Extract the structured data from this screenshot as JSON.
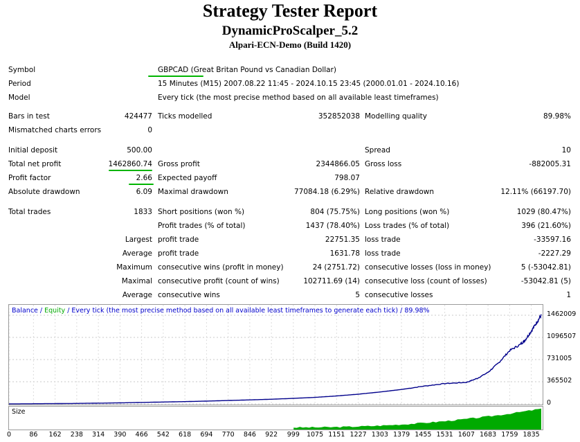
{
  "report": {
    "title": "Strategy Tester Report",
    "expert": "DynamicProScalper_5.2",
    "server": "Alpari-ECN-Demo (Build 1420)"
  },
  "info": {
    "symbol_label": "Symbol",
    "symbol_value": "GBPCAD (Great Britan Pound vs Canadian Dollar)",
    "period_label": "Period",
    "period_value": "15 Minutes (M15) 2007.08.22 11:45 - 2024.10.15 23:45 (2000.01.01 - 2024.10.16)",
    "model_label": "Model",
    "model_value": "Every tick (the most precise method based on all available least timeframes)"
  },
  "stats": {
    "bars_label": "Bars in test",
    "bars_value": "424477",
    "ticks_label": "Ticks modelled",
    "ticks_value": "352852038",
    "quality_label": "Modelling quality",
    "quality_value": "89.98%",
    "mismatch_label": "Mismatched charts errors",
    "mismatch_value": "0",
    "deposit_label": "Initial deposit",
    "deposit_value": "500.00",
    "spread_label": "Spread",
    "spread_value": "10",
    "netprofit_label": "Total net profit",
    "netprofit_value": "1462860.74",
    "grossprofit_label": "Gross profit",
    "grossprofit_value": "2344866.05",
    "grossloss_label": "Gross loss",
    "grossloss_value": "-882005.31",
    "pf_label": "Profit factor",
    "pf_value": "2.66",
    "payoff_label": "Expected payoff",
    "payoff_value": "798.07",
    "absdd_label": "Absolute drawdown",
    "absdd_value": "6.09",
    "maxdd_label": "Maximal drawdown",
    "maxdd_value": "77084.18 (6.29%)",
    "reldd_label": "Relative drawdown",
    "reldd_value": "12.11% (66197.70)",
    "trades_label": "Total trades",
    "trades_value": "1833",
    "short_label": "Short positions (won %)",
    "short_value": "804 (75.75%)",
    "long_label": "Long positions (won %)",
    "long_value": "1029 (80.47%)",
    "pt_label": "Profit trades (% of total)",
    "pt_value": "1437 (78.40%)",
    "lt_label": "Loss trades (% of total)",
    "lt_value": "396 (21.60%)",
    "largest_label": "Largest",
    "lpt_label": "profit trade",
    "lpt_value": "22751.35",
    "llt_label": "loss trade",
    "llt_value": "-33597.16",
    "average_label": "Average",
    "apt_label": "profit trade",
    "apt_value": "1631.78",
    "alt_label": "loss trade",
    "alt_value": "-2227.29",
    "maximum_label": "Maximum",
    "mcw_label": "consecutive wins (profit in money)",
    "mcw_value": "24 (2751.72)",
    "mcl_label": "consecutive losses (loss in money)",
    "mcl_value": "5 (-53042.81)",
    "maximal_label": "Maximal",
    "mcp_label": "consecutive profit (count of wins)",
    "mcp_value": "102711.69 (14)",
    "mcls_label": "consecutive loss (count of losses)",
    "mcls_value": "-53042.81 (5)",
    "average2_label": "Average",
    "acw_label": "consecutive wins",
    "acw_value": "5",
    "acl_label": "consecutive losses",
    "acl_value": "1"
  },
  "chart_data": {
    "type": "line",
    "legend": {
      "balance": "Balance",
      "sep1": " / ",
      "equity": "Equity",
      "rest": " / Every tick (the most precise method based on all available least timeframes to generate each tick) / 89.98%"
    },
    "colors": {
      "balance": "#00008b",
      "equity": "#00aa00",
      "size": "#00aa00",
      "label": "#0000cc"
    },
    "size_label": "Size",
    "ylim": [
      0,
      1462009
    ],
    "xlim": [
      0,
      1870
    ],
    "y_ticks": [
      "1462009",
      "1096507",
      "731005",
      "365502",
      "0"
    ],
    "y_tick_values": [
      1462009,
      1096507,
      731005,
      365502,
      0
    ],
    "x_ticks": [
      0,
      86,
      162,
      238,
      314,
      390,
      466,
      542,
      618,
      694,
      770,
      846,
      922,
      999,
      1075,
      1151,
      1227,
      1303,
      1379,
      1455,
      1531,
      1607,
      1683,
      1759,
      1835
    ],
    "balance": [
      [
        0,
        500
      ],
      [
        86,
        3000
      ],
      [
        162,
        5000
      ],
      [
        238,
        8000
      ],
      [
        314,
        12000
      ],
      [
        390,
        17000
      ],
      [
        466,
        24000
      ],
      [
        542,
        31000
      ],
      [
        618,
        38000
      ],
      [
        694,
        46000
      ],
      [
        770,
        56000
      ],
      [
        846,
        66000
      ],
      [
        922,
        77000
      ],
      [
        999,
        91000
      ],
      [
        1075,
        108000
      ],
      [
        1151,
        131000
      ],
      [
        1227,
        160000
      ],
      [
        1303,
        196000
      ],
      [
        1379,
        238000
      ],
      [
        1455,
        291000
      ],
      [
        1531,
        335000
      ],
      [
        1607,
        355000
      ],
      [
        1645,
        420000
      ],
      [
        1683,
        520000
      ],
      [
        1721,
        680000
      ],
      [
        1759,
        880000
      ],
      [
        1797,
        980000
      ],
      [
        1813,
        1050000
      ],
      [
        1835,
        1200000
      ],
      [
        1855,
        1350000
      ],
      [
        1870,
        1462009
      ]
    ],
    "size_start": 1000,
    "size_end": 1870
  }
}
